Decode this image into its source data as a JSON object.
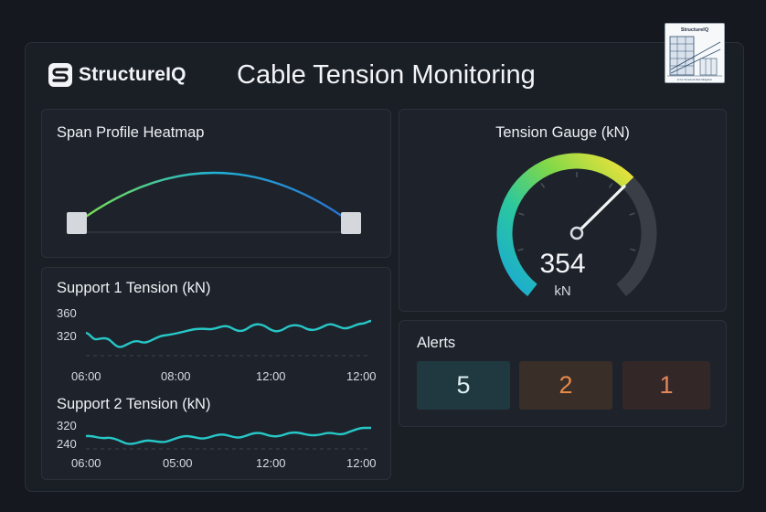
{
  "brand": {
    "name": "StructureIQ"
  },
  "title": "Cable Tension Monitoring",
  "thumbnail": {
    "title": "StructureIQ",
    "caption": "AI for Structural Risk Mitigation"
  },
  "span_profile": {
    "title": "Span Profile Heatmap"
  },
  "gauge": {
    "title": "Tension Gauge (kN)",
    "value": "354",
    "unit": "kN",
    "level": 0.66,
    "colors": {
      "track": "#3a3f47",
      "gradient": [
        "#1aa9d6",
        "#2bc7a0",
        "#7fd84a",
        "#f2e23a"
      ]
    }
  },
  "support1": {
    "title": "Support 1 Tension (kN)",
    "y_ticks": [
      "360",
      "320"
    ],
    "x_ticks": [
      "06:00",
      "08:00",
      "12:00",
      "12:00"
    ],
    "line_color": "#27c7c7"
  },
  "support2": {
    "title": "Support 2 Tension (kN)",
    "y_ticks": [
      "320",
      "240"
    ],
    "x_ticks": [
      "06:00",
      "05:00",
      "12:00",
      "12:00"
    ],
    "line_color": "#27c7c7"
  },
  "alerts": {
    "title": "Alerts",
    "items": [
      {
        "count": "5",
        "color": "#dfeef0",
        "bg": "#203941"
      },
      {
        "count": "2",
        "color": "#e6894a",
        "bg": "#3a2e29"
      },
      {
        "count": "1",
        "color": "#e2875c",
        "bg": "#342727"
      }
    ]
  }
}
